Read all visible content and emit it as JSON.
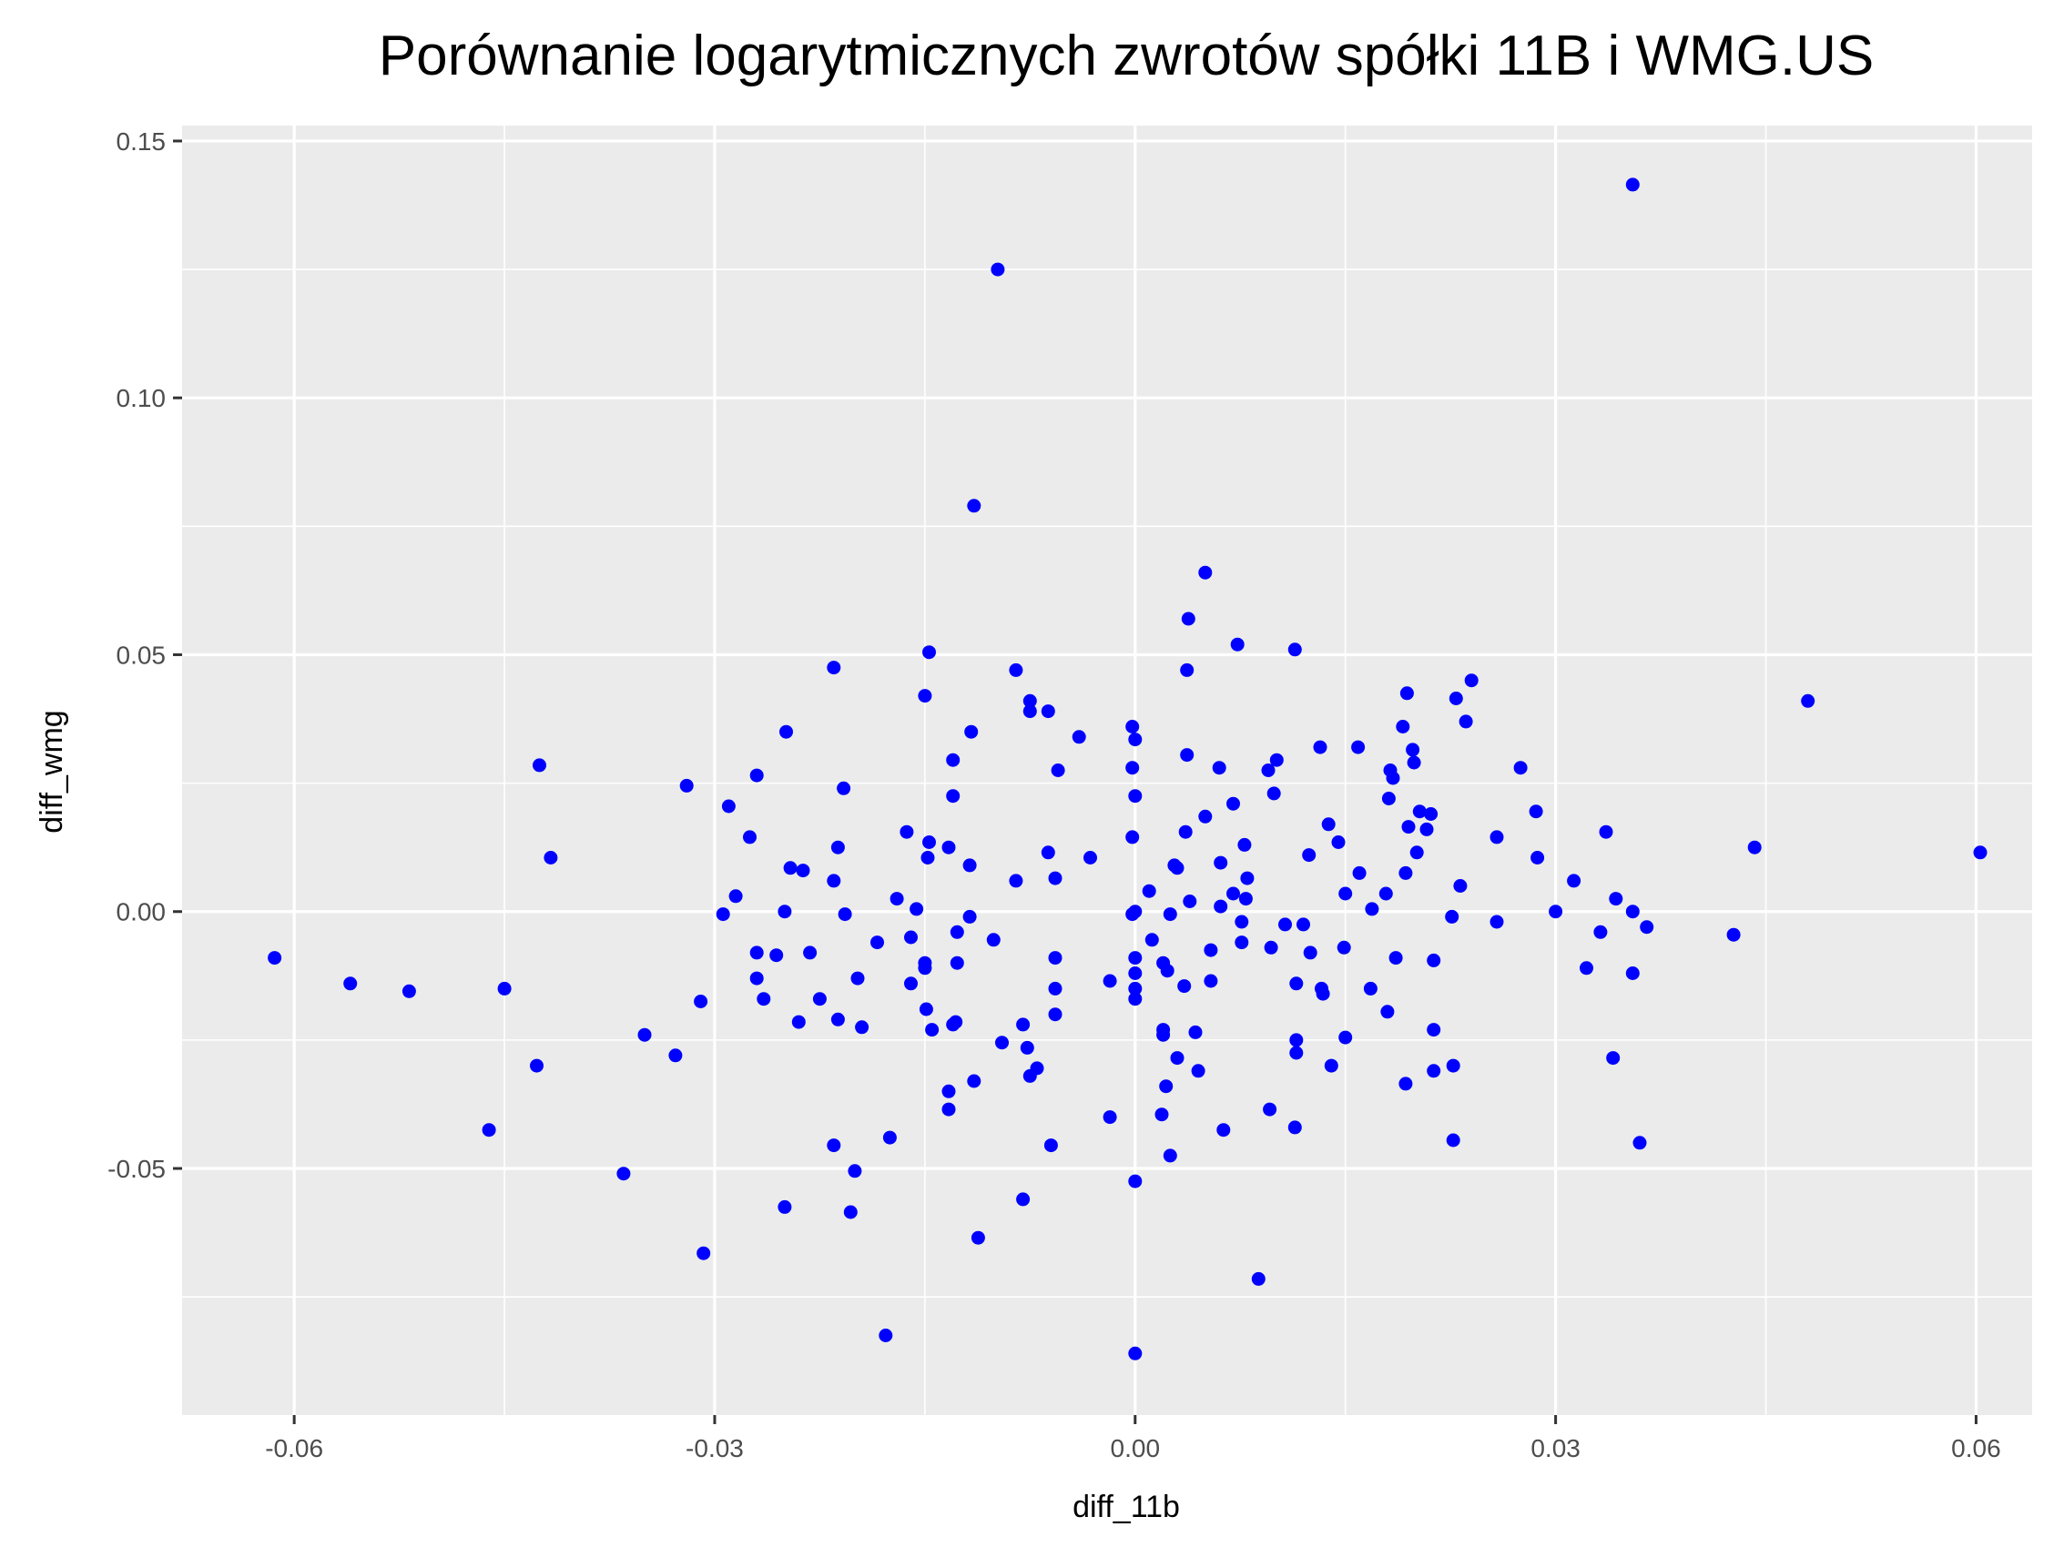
{
  "chart_data": {
    "type": "scatter",
    "title": "Porównanie logarytmicznych zwrotów spółki 11B i WMG.US",
    "xlabel": "diff_11b",
    "ylabel": "diff_wmg",
    "xlim": [
      -0.068,
      0.064
    ],
    "ylim": [
      -0.098,
      0.153
    ],
    "x_ticks": [
      -0.06,
      -0.03,
      0.0,
      0.03,
      0.06
    ],
    "x_tick_labels": [
      "-0.06",
      "-0.03",
      "0.00",
      "0.03",
      "0.06"
    ],
    "y_ticks": [
      -0.05,
      0.0,
      0.05,
      0.1,
      0.15
    ],
    "y_tick_labels": [
      "-0.05",
      "0.00",
      "0.05",
      "0.10",
      "0.15"
    ],
    "grid": true,
    "colors": {
      "point": "#0000ff",
      "panel": "#ebebeb",
      "grid": "#ffffff"
    },
    "points": [
      [
        0.0355,
        0.1415
      ],
      [
        -0.0098,
        0.125
      ],
      [
        -0.0115,
        0.079
      ],
      [
        0.005,
        0.066
      ],
      [
        0.0038,
        0.057
      ],
      [
        0.0073,
        0.052
      ],
      [
        0.0114,
        0.051
      ],
      [
        -0.0147,
        0.0505
      ],
      [
        0.0037,
        0.047
      ],
      [
        -0.0215,
        0.0475
      ],
      [
        -0.0085,
        0.047
      ],
      [
        0.024,
        0.045
      ],
      [
        -0.015,
        0.042
      ],
      [
        0.0194,
        0.0425
      ],
      [
        0.0229,
        0.0415
      ],
      [
        0.048,
        0.041
      ],
      [
        -0.0075,
        0.041
      ],
      [
        -0.0075,
        0.039
      ],
      [
        -0.0062,
        0.039
      ],
      [
        0.0236,
        0.037
      ],
      [
        -0.0002,
        0.036
      ],
      [
        0.0191,
        0.036
      ],
      [
        -0.0249,
        0.035
      ],
      [
        -0.0117,
        0.035
      ],
      [
        -0.004,
        0.034
      ],
      [
        0.0,
        0.0335
      ],
      [
        0.0132,
        0.032
      ],
      [
        0.0159,
        0.032
      ],
      [
        0.0198,
        0.0315
      ],
      [
        0.0037,
        0.0305
      ],
      [
        -0.013,
        0.0295
      ],
      [
        0.0101,
        0.0295
      ],
      [
        0.0199,
        0.029
      ],
      [
        -0.0425,
        0.0285
      ],
      [
        0.006,
        0.028
      ],
      [
        0.0095,
        0.0275
      ],
      [
        -0.0055,
        0.0275
      ],
      [
        -0.0002,
        0.028
      ],
      [
        0.0275,
        0.028
      ],
      [
        0.0182,
        0.0275
      ],
      [
        0.0184,
        0.026
      ],
      [
        -0.027,
        0.0265
      ],
      [
        -0.032,
        0.0245
      ],
      [
        -0.0208,
        0.024
      ],
      [
        -0.013,
        0.0225
      ],
      [
        0.0,
        0.0225
      ],
      [
        0.0099,
        0.023
      ],
      [
        0.0181,
        0.022
      ],
      [
        -0.029,
        0.0205
      ],
      [
        0.007,
        0.021
      ],
      [
        0.0203,
        0.0195
      ],
      [
        0.0286,
        0.0195
      ],
      [
        0.0211,
        0.019
      ],
      [
        0.005,
        0.0185
      ],
      [
        -0.0163,
        0.0155
      ],
      [
        0.0138,
        0.017
      ],
      [
        0.0208,
        0.016
      ],
      [
        0.0195,
        0.0165
      ],
      [
        -0.0002,
        0.0145
      ],
      [
        0.0036,
        0.0155
      ],
      [
        0.0336,
        0.0155
      ],
      [
        -0.0275,
        0.0145
      ],
      [
        0.0258,
        0.0145
      ],
      [
        -0.0147,
        0.0135
      ],
      [
        -0.0133,
        0.0125
      ],
      [
        0.0078,
        0.013
      ],
      [
        -0.0212,
        0.0125
      ],
      [
        0.0145,
        0.0135
      ],
      [
        0.0442,
        0.0125
      ],
      [
        0.0603,
        0.0115
      ],
      [
        -0.0062,
        0.0115
      ],
      [
        -0.0417,
        0.0105
      ],
      [
        -0.0148,
        0.0105
      ],
      [
        0.0124,
        0.011
      ],
      [
        0.0201,
        0.0115
      ],
      [
        -0.0032,
        0.0105
      ],
      [
        0.0287,
        0.0105
      ],
      [
        -0.0118,
        0.009
      ],
      [
        0.0028,
        0.009
      ],
      [
        0.0061,
        0.0095
      ],
      [
        -0.0246,
        0.0085
      ],
      [
        -0.0237,
        0.008
      ],
      [
        -0.0057,
        0.0065
      ],
      [
        0.003,
        0.0085
      ],
      [
        0.016,
        0.0075
      ],
      [
        -0.0085,
        0.006
      ],
      [
        0.0193,
        0.0075
      ],
      [
        -0.0215,
        0.006
      ],
      [
        0.0313,
        0.006
      ],
      [
        0.008,
        0.0065
      ],
      [
        0.0232,
        0.005
      ],
      [
        0.001,
        0.004
      ],
      [
        0.0343,
        0.0025
      ],
      [
        -0.017,
        0.0025
      ],
      [
        -0.0285,
        0.003
      ],
      [
        0.007,
        0.0035
      ],
      [
        0.0079,
        0.0025
      ],
      [
        0.015,
        0.0035
      ],
      [
        0.0039,
        0.002
      ],
      [
        0.0179,
        0.0035
      ],
      [
        0.0061,
        0.001
      ],
      [
        -0.0156,
        0.0005
      ],
      [
        -0.025,
        0.0
      ],
      [
        -0.0294,
        -0.0005
      ],
      [
        -0.0002,
        -0.0005
      ],
      [
        0.0,
        0.0
      ],
      [
        0.0025,
        -0.0005
      ],
      [
        0.03,
        0.0
      ],
      [
        0.0169,
        0.0005
      ],
      [
        0.0355,
        0.0
      ],
      [
        -0.0207,
        -0.0005
      ],
      [
        -0.0118,
        -0.001
      ],
      [
        0.0076,
        -0.002
      ],
      [
        0.0107,
        -0.0025
      ],
      [
        0.012,
        -0.0025
      ],
      [
        0.0226,
        -0.001
      ],
      [
        0.0258,
        -0.002
      ],
      [
        0.0365,
        -0.003
      ],
      [
        0.0332,
        -0.004
      ],
      [
        -0.0127,
        -0.004
      ],
      [
        -0.0101,
        -0.0055
      ],
      [
        -0.016,
        -0.005
      ],
      [
        -0.0184,
        -0.006
      ],
      [
        0.0012,
        -0.0055
      ],
      [
        0.0076,
        -0.006
      ],
      [
        0.0097,
        -0.007
      ],
      [
        0.0125,
        -0.008
      ],
      [
        0.0149,
        -0.007
      ],
      [
        0.0427,
        -0.0045
      ],
      [
        -0.0232,
        -0.008
      ],
      [
        -0.0256,
        -0.0085
      ],
      [
        -0.027,
        -0.008
      ],
      [
        -0.015,
        -0.01
      ],
      [
        -0.0057,
        -0.009
      ],
      [
        0.0,
        -0.009
      ],
      [
        0.0054,
        -0.0075
      ],
      [
        0.0186,
        -0.009
      ],
      [
        0.0213,
        -0.0095
      ],
      [
        -0.0614,
        -0.009
      ],
      [
        0.0355,
        -0.012
      ],
      [
        -0.0127,
        -0.01
      ],
      [
        -0.015,
        -0.011
      ],
      [
        0.0,
        -0.012
      ],
      [
        0.002,
        -0.01
      ],
      [
        0.0023,
        -0.0115
      ],
      [
        0.0168,
        -0.015
      ],
      [
        0.0322,
        -0.011
      ],
      [
        -0.056,
        -0.014
      ],
      [
        -0.0518,
        -0.0155
      ],
      [
        -0.045,
        -0.015
      ],
      [
        -0.027,
        -0.013
      ],
      [
        -0.0198,
        -0.013
      ],
      [
        -0.016,
        -0.014
      ],
      [
        -0.0057,
        -0.015
      ],
      [
        -0.0018,
        -0.0135
      ],
      [
        0.0,
        -0.015
      ],
      [
        0.0054,
        -0.0135
      ],
      [
        0.0115,
        -0.014
      ],
      [
        0.0133,
        -0.015
      ],
      [
        0.0134,
        -0.016
      ],
      [
        0.0035,
        -0.0145
      ],
      [
        -0.0265,
        -0.017
      ],
      [
        -0.0225,
        -0.017
      ],
      [
        -0.031,
        -0.0175
      ],
      [
        0.0,
        -0.017
      ],
      [
        -0.0057,
        -0.02
      ],
      [
        -0.0149,
        -0.019
      ],
      [
        0.018,
        -0.0195
      ],
      [
        -0.024,
        -0.0215
      ],
      [
        -0.0212,
        -0.021
      ],
      [
        -0.0195,
        -0.0225
      ],
      [
        -0.0145,
        -0.023
      ],
      [
        -0.0128,
        -0.0215
      ],
      [
        -0.013,
        -0.022
      ],
      [
        -0.008,
        -0.022
      ],
      [
        0.002,
        -0.023
      ],
      [
        0.002,
        -0.024
      ],
      [
        0.0043,
        -0.0235
      ],
      [
        0.0213,
        -0.023
      ],
      [
        0.0115,
        -0.025
      ],
      [
        0.015,
        -0.0245
      ],
      [
        -0.035,
        -0.024
      ],
      [
        -0.0095,
        -0.0255
      ],
      [
        -0.0077,
        -0.0265
      ],
      [
        0.0115,
        -0.0275
      ],
      [
        -0.0328,
        -0.028
      ],
      [
        -0.0427,
        -0.03
      ],
      [
        -0.007,
        -0.0305
      ],
      [
        0.003,
        -0.0285
      ],
      [
        0.0045,
        -0.031
      ],
      [
        0.014,
        -0.03
      ],
      [
        0.0227,
        -0.03
      ],
      [
        0.0341,
        -0.0285
      ],
      [
        0.0213,
        -0.031
      ],
      [
        -0.0075,
        -0.032
      ],
      [
        -0.0115,
        -0.033
      ],
      [
        -0.0133,
        -0.035
      ],
      [
        0.0022,
        -0.034
      ],
      [
        0.0193,
        -0.0335
      ],
      [
        -0.0133,
        -0.0385
      ],
      [
        -0.0018,
        -0.04
      ],
      [
        0.0019,
        -0.0395
      ],
      [
        0.0096,
        -0.0385
      ],
      [
        -0.0461,
        -0.0425
      ],
      [
        -0.0175,
        -0.044
      ],
      [
        0.0063,
        -0.0425
      ],
      [
        0.0114,
        -0.042
      ],
      [
        -0.0215,
        -0.0455
      ],
      [
        -0.006,
        -0.0455
      ],
      [
        0.0227,
        -0.0445
      ],
      [
        0.036,
        -0.045
      ],
      [
        0.0025,
        -0.0475
      ],
      [
        -0.0365,
        -0.051
      ],
      [
        -0.02,
        -0.0505
      ],
      [
        0.0,
        -0.0525
      ],
      [
        -0.008,
        -0.056
      ],
      [
        -0.025,
        -0.0575
      ],
      [
        -0.0203,
        -0.0585
      ],
      [
        -0.0112,
        -0.0635
      ],
      [
        -0.0308,
        -0.0665
      ],
      [
        0.0088,
        -0.0715
      ],
      [
        -0.0178,
        -0.0825
      ],
      [
        0.0,
        -0.086
      ]
    ]
  }
}
